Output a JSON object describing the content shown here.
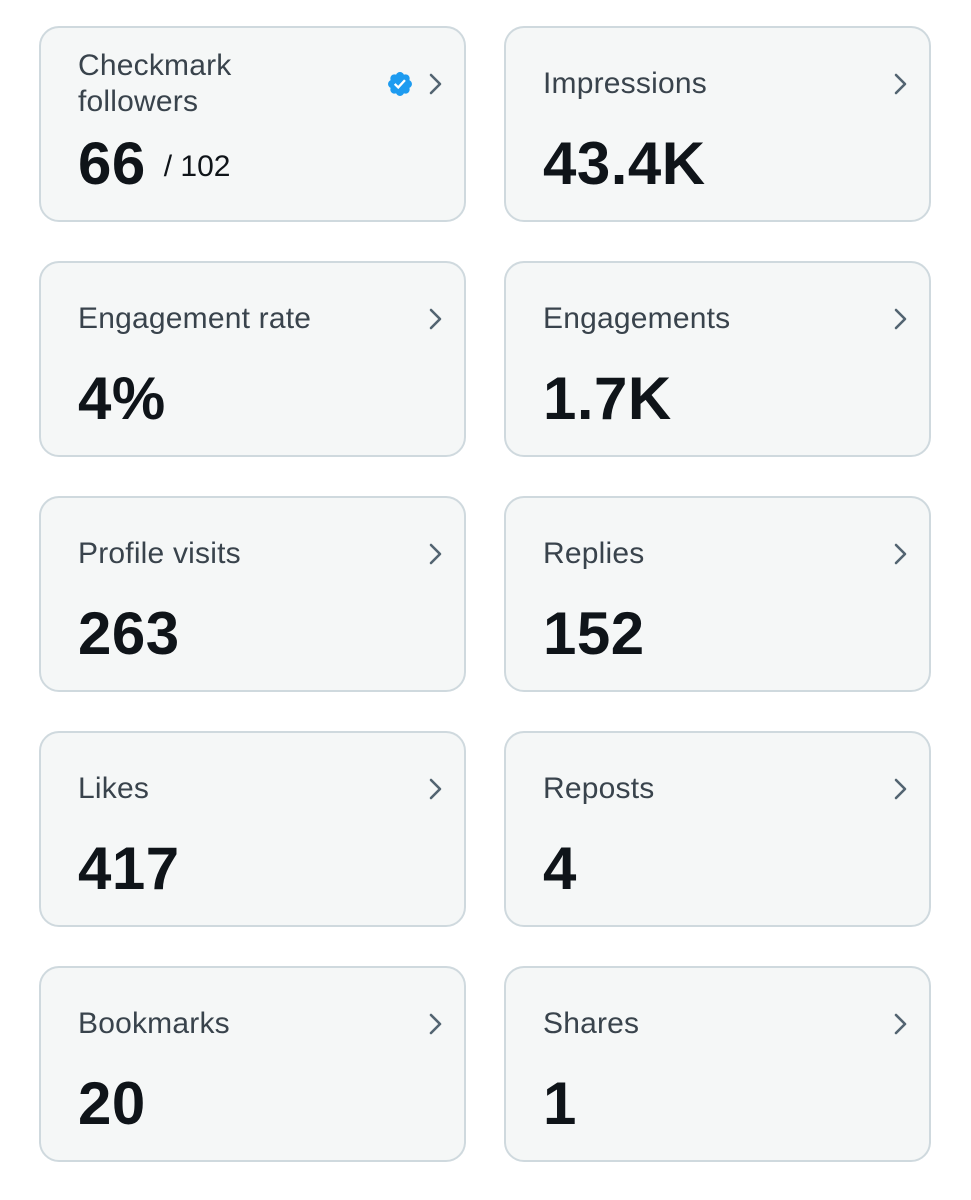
{
  "colors": {
    "card_background": "#f5f7f7",
    "card_border": "#cfd9de",
    "label_text": "#39434c",
    "value_text": "#0f1419",
    "chevron": "#536471",
    "verified_badge": "#1d9bf0"
  },
  "cards": [
    {
      "label": "Checkmark followers",
      "value": "66",
      "sub_value": "/ 102",
      "icon": "verified-badge-icon",
      "chevron_icon": "chevron-right-icon"
    },
    {
      "label": "Impressions",
      "value": "43.4K",
      "chevron_icon": "chevron-right-icon"
    },
    {
      "label": "Engagement rate",
      "value": "4%",
      "chevron_icon": "chevron-right-icon"
    },
    {
      "label": "Engagements",
      "value": "1.7K",
      "chevron_icon": "chevron-right-icon"
    },
    {
      "label": "Profile visits",
      "value": "263",
      "chevron_icon": "chevron-right-icon"
    },
    {
      "label": "Replies",
      "value": "152",
      "chevron_icon": "chevron-right-icon"
    },
    {
      "label": "Likes",
      "value": "417",
      "chevron_icon": "chevron-right-icon"
    },
    {
      "label": "Reposts",
      "value": "4",
      "chevron_icon": "chevron-right-icon"
    },
    {
      "label": "Bookmarks",
      "value": "20",
      "chevron_icon": "chevron-right-icon"
    },
    {
      "label": "Shares",
      "value": "1",
      "chevron_icon": "chevron-right-icon"
    }
  ]
}
